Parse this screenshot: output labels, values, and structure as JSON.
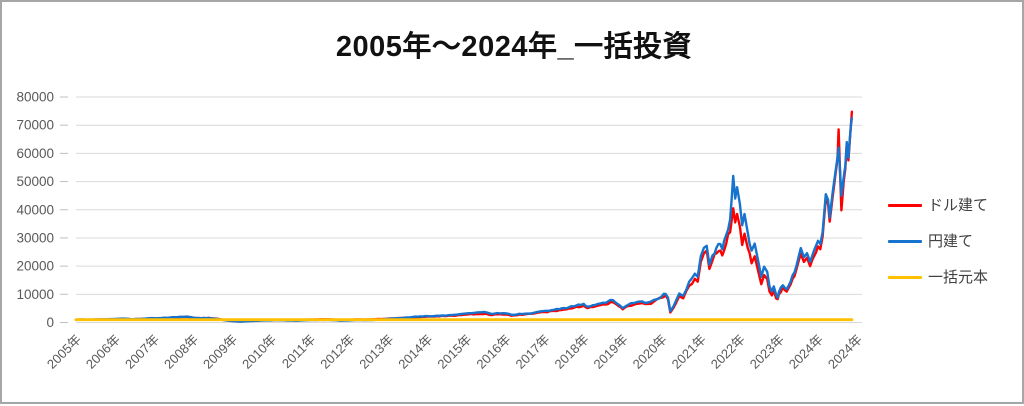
{
  "chart_data": {
    "type": "line",
    "title": "2005年～2024年_一括投資",
    "grid": "horizontal",
    "legend_position": "right",
    "style": {
      "gridline_color": "#d9d9d9",
      "tick_color": "#bfbfbf",
      "axis_text_color": "#595959",
      "frame_border_color": "#a6a6a6"
    },
    "y_axis": {
      "max": 80000,
      "min": 0,
      "ticks": [
        0,
        10000,
        20000,
        30000,
        40000,
        50000,
        60000,
        70000,
        80000
      ]
    },
    "x_axis": {
      "start_year": 2005,
      "tick_labels": [
        "2005年",
        "2006年",
        "2007年",
        "2008年",
        "2009年",
        "2010年",
        "2011年",
        "2012年",
        "2013年",
        "2014年",
        "2015年",
        "2016年",
        "2017年",
        "2018年",
        "2019年",
        "2020年",
        "2021年",
        "2022年",
        "2023年",
        "2024年",
        "2024年"
      ]
    },
    "series": [
      {
        "name": "ドル建て",
        "color": "#ff0000",
        "points": [
          [
            2005,
            1000
          ],
          [
            2005.2,
            1030
          ],
          [
            2005.4,
            980
          ],
          [
            2005.6,
            1060
          ],
          [
            2005.8,
            1120
          ],
          [
            2006,
            1180
          ],
          [
            2006.2,
            1320
          ],
          [
            2006.4,
            1160
          ],
          [
            2006.6,
            1220
          ],
          [
            2006.8,
            1360
          ],
          [
            2007,
            1460
          ],
          [
            2007.2,
            1520
          ],
          [
            2007.4,
            1620
          ],
          [
            2007.6,
            1760
          ],
          [
            2007.8,
            1920
          ],
          [
            2007.9,
            1860
          ],
          [
            2008,
            1660
          ],
          [
            2008.2,
            1500
          ],
          [
            2008.4,
            1600
          ],
          [
            2008.6,
            1340
          ],
          [
            2008.8,
            880
          ],
          [
            2009,
            580
          ],
          [
            2009.2,
            400
          ],
          [
            2009.4,
            560
          ],
          [
            2009.6,
            700
          ],
          [
            2009.8,
            800
          ],
          [
            2010,
            880
          ],
          [
            2010.2,
            950
          ],
          [
            2010.4,
            820
          ],
          [
            2010.6,
            780
          ],
          [
            2010.8,
            900
          ],
          [
            2011,
            1020
          ],
          [
            2011.2,
            1100
          ],
          [
            2011.4,
            1150
          ],
          [
            2011.6,
            1040
          ],
          [
            2011.8,
            820
          ],
          [
            2012,
            950
          ],
          [
            2012.2,
            1090
          ],
          [
            2012.4,
            1040
          ],
          [
            2012.6,
            1140
          ],
          [
            2012.8,
            1220
          ],
          [
            2013,
            1400
          ],
          [
            2013.25,
            1560
          ],
          [
            2013.5,
            1700
          ],
          [
            2013.75,
            1900
          ],
          [
            2014,
            2100
          ],
          [
            2014.25,
            2250
          ],
          [
            2014.5,
            2320
          ],
          [
            2014.75,
            2520
          ],
          [
            2015,
            2820
          ],
          [
            2015.25,
            3020
          ],
          [
            2015.5,
            3120
          ],
          [
            2015.65,
            2620
          ],
          [
            2015.8,
            2920
          ],
          [
            2016,
            2860
          ],
          [
            2016.15,
            2420
          ],
          [
            2016.35,
            2800
          ],
          [
            2016.5,
            2920
          ],
          [
            2016.75,
            3220
          ],
          [
            2017,
            3700
          ],
          [
            2017.25,
            4120
          ],
          [
            2017.5,
            4620
          ],
          [
            2017.75,
            5220
          ],
          [
            2018,
            6000
          ],
          [
            2018.1,
            5120
          ],
          [
            2018.3,
            5720
          ],
          [
            2018.5,
            6420
          ],
          [
            2018.75,
            7200
          ],
          [
            2018.9,
            5800
          ],
          [
            2019,
            4700
          ],
          [
            2019.15,
            5900
          ],
          [
            2019.35,
            6600
          ],
          [
            2019.5,
            6900
          ],
          [
            2019.65,
            6600
          ],
          [
            2019.8,
            7400
          ],
          [
            2020,
            8800
          ],
          [
            2020.1,
            9600
          ],
          [
            2020.16,
            8200
          ],
          [
            2020.22,
            3600
          ],
          [
            2020.3,
            5200
          ],
          [
            2020.45,
            9400
          ],
          [
            2020.55,
            8600
          ],
          [
            2020.7,
            13000
          ],
          [
            2020.85,
            15500
          ],
          [
            2020.92,
            14500
          ],
          [
            2021,
            21500
          ],
          [
            2021.08,
            24500
          ],
          [
            2021.15,
            25500
          ],
          [
            2021.22,
            19000
          ],
          [
            2021.3,
            22000
          ],
          [
            2021.4,
            24500
          ],
          [
            2021.5,
            25500
          ],
          [
            2021.55,
            23800
          ],
          [
            2021.65,
            28000
          ],
          [
            2021.75,
            32000
          ],
          [
            2021.79,
            36000
          ],
          [
            2021.83,
            40500
          ],
          [
            2021.88,
            35500
          ],
          [
            2021.93,
            38500
          ],
          [
            2022,
            34000
          ],
          [
            2022.06,
            27500
          ],
          [
            2022.12,
            31500
          ],
          [
            2022.2,
            26500
          ],
          [
            2022.3,
            21000
          ],
          [
            2022.38,
            23500
          ],
          [
            2022.46,
            18800
          ],
          [
            2022.55,
            13600
          ],
          [
            2022.62,
            16800
          ],
          [
            2022.7,
            15400
          ],
          [
            2022.76,
            11000
          ],
          [
            2022.82,
            9600
          ],
          [
            2022.87,
            11400
          ],
          [
            2022.93,
            8500
          ],
          [
            2022.97,
            8300
          ],
          [
            2023,
            10000
          ],
          [
            2023.1,
            12400
          ],
          [
            2023.2,
            11000
          ],
          [
            2023.3,
            13500
          ],
          [
            2023.4,
            16500
          ],
          [
            2023.5,
            21500
          ],
          [
            2023.56,
            24400
          ],
          [
            2023.64,
            21500
          ],
          [
            2023.72,
            23000
          ],
          [
            2023.8,
            20000
          ],
          [
            2023.9,
            23500
          ],
          [
            2024,
            27000
          ],
          [
            2024.06,
            26000
          ],
          [
            2024.12,
            30500
          ],
          [
            2024.2,
            44000
          ],
          [
            2024.26,
            42000
          ],
          [
            2024.3,
            35800
          ],
          [
            2024.38,
            45000
          ],
          [
            2024.44,
            51500
          ],
          [
            2024.5,
            58000
          ],
          [
            2024.53,
            68500
          ],
          [
            2024.57,
            52000
          ],
          [
            2024.6,
            39800
          ],
          [
            2024.66,
            50000
          ],
          [
            2024.7,
            54500
          ],
          [
            2024.74,
            63500
          ],
          [
            2024.78,
            57500
          ],
          [
            2024.82,
            65500
          ],
          [
            2024.85,
            71000
          ],
          [
            2024.87,
            74800
          ]
        ]
      },
      {
        "name": "円建て",
        "color": "#1673ce",
        "points": [
          [
            2005,
            1000
          ],
          [
            2005.2,
            1020
          ],
          [
            2005.4,
            990
          ],
          [
            2005.6,
            1080
          ],
          [
            2005.8,
            1150
          ],
          [
            2006,
            1230
          ],
          [
            2006.2,
            1380
          ],
          [
            2006.4,
            1210
          ],
          [
            2006.6,
            1270
          ],
          [
            2006.8,
            1430
          ],
          [
            2007,
            1540
          ],
          [
            2007.2,
            1610
          ],
          [
            2007.4,
            1730
          ],
          [
            2007.6,
            1910
          ],
          [
            2007.8,
            2060
          ],
          [
            2007.9,
            1960
          ],
          [
            2008,
            1700
          ],
          [
            2008.2,
            1510
          ],
          [
            2008.4,
            1580
          ],
          [
            2008.6,
            1270
          ],
          [
            2008.8,
            790
          ],
          [
            2009,
            510
          ],
          [
            2009.2,
            340
          ],
          [
            2009.4,
            470
          ],
          [
            2009.6,
            600
          ],
          [
            2009.8,
            690
          ],
          [
            2010,
            760
          ],
          [
            2010.2,
            820
          ],
          [
            2010.4,
            700
          ],
          [
            2010.6,
            650
          ],
          [
            2010.8,
            750
          ],
          [
            2011,
            840
          ],
          [
            2011.2,
            900
          ],
          [
            2011.4,
            930
          ],
          [
            2011.6,
            830
          ],
          [
            2011.8,
            630
          ],
          [
            2012,
            740
          ],
          [
            2012.2,
            860
          ],
          [
            2012.4,
            810
          ],
          [
            2012.6,
            900
          ],
          [
            2012.8,
            980
          ],
          [
            2013,
            1350
          ],
          [
            2013.25,
            1560
          ],
          [
            2013.5,
            1800
          ],
          [
            2013.75,
            2060
          ],
          [
            2014,
            2260
          ],
          [
            2014.25,
            2420
          ],
          [
            2014.5,
            2520
          ],
          [
            2014.75,
            2820
          ],
          [
            2015,
            3220
          ],
          [
            2015.25,
            3520
          ],
          [
            2015.5,
            3620
          ],
          [
            2015.65,
            3020
          ],
          [
            2015.8,
            3380
          ],
          [
            2016,
            3260
          ],
          [
            2016.15,
            2720
          ],
          [
            2016.35,
            3080
          ],
          [
            2016.5,
            3130
          ],
          [
            2016.75,
            3520
          ],
          [
            2017,
            4120
          ],
          [
            2017.25,
            4520
          ],
          [
            2017.5,
            5120
          ],
          [
            2017.75,
            5720
          ],
          [
            2018,
            6620
          ],
          [
            2018.1,
            5620
          ],
          [
            2018.3,
            6250
          ],
          [
            2018.5,
            7020
          ],
          [
            2018.75,
            7900
          ],
          [
            2018.9,
            6300
          ],
          [
            2019,
            5100
          ],
          [
            2019.15,
            6400
          ],
          [
            2019.35,
            7200
          ],
          [
            2019.5,
            7500
          ],
          [
            2019.65,
            7100
          ],
          [
            2019.8,
            8000
          ],
          [
            2020,
            9300
          ],
          [
            2020.1,
            10100
          ],
          [
            2020.16,
            8800
          ],
          [
            2020.22,
            4000
          ],
          [
            2020.3,
            5700
          ],
          [
            2020.45,
            10300
          ],
          [
            2020.55,
            9500
          ],
          [
            2020.7,
            14400
          ],
          [
            2020.85,
            17300
          ],
          [
            2020.92,
            16200
          ],
          [
            2021,
            23500
          ],
          [
            2021.08,
            26500
          ],
          [
            2021.15,
            27200
          ],
          [
            2021.22,
            20500
          ],
          [
            2021.3,
            23800
          ],
          [
            2021.4,
            26500
          ],
          [
            2021.5,
            27800
          ],
          [
            2021.55,
            26000
          ],
          [
            2021.65,
            31000
          ],
          [
            2021.75,
            36500
          ],
          [
            2021.79,
            43500
          ],
          [
            2021.83,
            52000
          ],
          [
            2021.88,
            44000
          ],
          [
            2021.93,
            48000
          ],
          [
            2022,
            42000
          ],
          [
            2022.06,
            34500
          ],
          [
            2022.12,
            38500
          ],
          [
            2022.2,
            32000
          ],
          [
            2022.3,
            25500
          ],
          [
            2022.38,
            28000
          ],
          [
            2022.46,
            22500
          ],
          [
            2022.55,
            16200
          ],
          [
            2022.62,
            19800
          ],
          [
            2022.7,
            18000
          ],
          [
            2022.76,
            12800
          ],
          [
            2022.82,
            11000
          ],
          [
            2022.87,
            12800
          ],
          [
            2022.93,
            9800
          ],
          [
            2022.97,
            8800
          ],
          [
            2023,
            10800
          ],
          [
            2023.1,
            13200
          ],
          [
            2023.2,
            11800
          ],
          [
            2023.3,
            14500
          ],
          [
            2023.4,
            17800
          ],
          [
            2023.5,
            23000
          ],
          [
            2023.56,
            26400
          ],
          [
            2023.64,
            23200
          ],
          [
            2023.72,
            24600
          ],
          [
            2023.8,
            21500
          ],
          [
            2023.9,
            25500
          ],
          [
            2024,
            29000
          ],
          [
            2024.06,
            27800
          ],
          [
            2024.12,
            32000
          ],
          [
            2024.2,
            45500
          ],
          [
            2024.26,
            43500
          ],
          [
            2024.3,
            37200
          ],
          [
            2024.38,
            46500
          ],
          [
            2024.44,
            52500
          ],
          [
            2024.5,
            58500
          ],
          [
            2024.53,
            62000
          ],
          [
            2024.57,
            52500
          ],
          [
            2024.6,
            45000
          ],
          [
            2024.66,
            51500
          ],
          [
            2024.7,
            55500
          ],
          [
            2024.74,
            64000
          ],
          [
            2024.78,
            58500
          ],
          [
            2024.82,
            66000
          ],
          [
            2024.85,
            70500
          ],
          [
            2024.87,
            72500
          ]
        ]
      },
      {
        "name": "一括元本",
        "color": "#ffc000",
        "points": [
          [
            2005,
            1000
          ],
          [
            2024.87,
            1000
          ]
        ]
      }
    ]
  }
}
